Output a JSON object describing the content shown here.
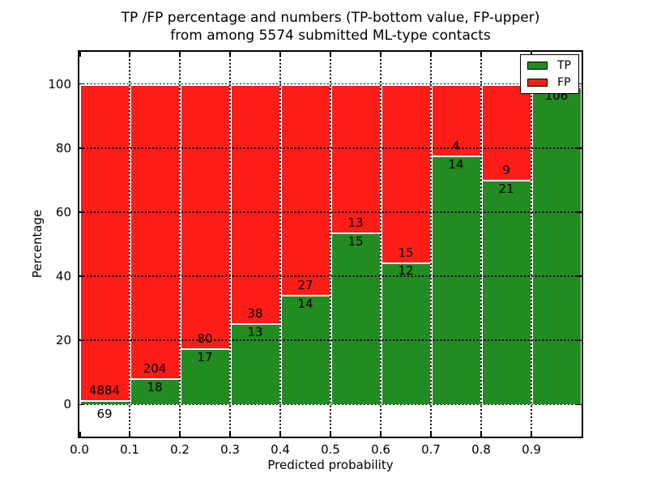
{
  "figure": {
    "background": "#ffffff"
  },
  "title": {
    "line1": "TP /FP percentage and numbers (TP-bottom value, FP-upper)",
    "line2": "from among 5574 submitted ML-type contacts"
  },
  "chart_data": {
    "type": "bar",
    "stacked": true,
    "normalized_to_percent": true,
    "title": "TP /FP percentage and numbers (TP-bottom value, FP-upper)\nfrom among 5574 submitted ML-type contacts",
    "xlabel": "Predicted probability",
    "ylabel": "Percentage",
    "xlim": [
      0.0,
      1.0
    ],
    "ylim": [
      -10,
      110
    ],
    "bin_width": 0.1,
    "bin_starts": [
      0.0,
      0.1,
      0.2,
      0.3,
      0.4,
      0.5,
      0.6,
      0.7,
      0.8,
      0.9
    ],
    "xtick_labels": [
      "0.0",
      "0.1",
      "0.2",
      "0.3",
      "0.4",
      "0.5",
      "0.6",
      "0.7",
      "0.8",
      "0.9"
    ],
    "ytick_values": [
      0,
      20,
      40,
      60,
      80,
      100
    ],
    "ytick_labels": [
      "0",
      "20",
      "40",
      "60",
      "80",
      "100"
    ],
    "grid": "dotted",
    "total_contacts": 5574,
    "series": [
      {
        "name": "TP",
        "color": "#228b22",
        "counts": [
          69,
          18,
          17,
          13,
          14,
          15,
          12,
          14,
          21,
          106
        ]
      },
      {
        "name": "FP",
        "color": "#fc1d17",
        "counts": [
          4884,
          204,
          80,
          38,
          27,
          13,
          15,
          4,
          9,
          1
        ]
      }
    ],
    "tp_percent_heights": [
      1.4,
      8.1,
      17.5,
      25.5,
      34.1,
      53.6,
      44.4,
      77.8,
      70.0,
      99.1
    ],
    "fp_label_visible": [
      true,
      true,
      true,
      true,
      true,
      true,
      true,
      true,
      true,
      false
    ],
    "legend": {
      "position": "upper right",
      "entries": [
        {
          "label": "TP",
          "color": "#228b22"
        },
        {
          "label": "FP",
          "color": "#fc1d17"
        }
      ]
    }
  }
}
